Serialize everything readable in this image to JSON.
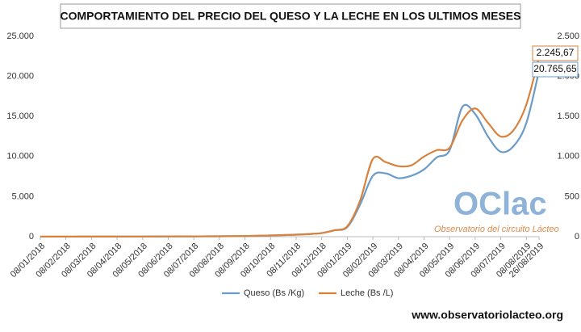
{
  "chart_data": {
    "type": "line",
    "title": "COMPORTAMIENTO DEL PRECIO DEL QUESO Y LA LECHE EN LOS ULTIMOS MESES",
    "categories": [
      "08/01/2018",
      null,
      "08/02/2018",
      null,
      "08/03/2018",
      null,
      "08/04/2018",
      null,
      "08/05/2018",
      null,
      "08/06/2018",
      null,
      "08/07/2018",
      null,
      "08/08/2018",
      null,
      "08/09/2018",
      null,
      "08/10/2018",
      null,
      "08/11/2018",
      null,
      "08/12/2018",
      null,
      "08/01/2019",
      null,
      "08/02/2019",
      null,
      "08/03/2019",
      null,
      "08/04/2019",
      null,
      "08/05/2019",
      null,
      "08/06/2019",
      null,
      "08/07/2019",
      null,
      "08/08/2019",
      "26/08/2019"
    ],
    "series": [
      {
        "name": "Queso (Bs /Kg)",
        "color": "#6b9bc8",
        "axis": "y",
        "values": [
          5,
          6,
          8,
          9,
          10,
          12,
          15,
          17,
          20,
          25,
          30,
          35,
          40,
          45,
          50,
          65,
          80,
          110,
          150,
          200,
          250,
          330,
          450,
          800,
          1200,
          4000,
          7600,
          7900,
          7300,
          7600,
          8400,
          9900,
          10800,
          16200,
          15300,
          12500,
          10600,
          11300,
          14200,
          20765.65
        ],
        "value_labels": [
          null,
          null,
          null,
          null,
          null,
          null,
          null,
          null,
          null,
          null,
          null,
          null,
          null,
          null,
          null,
          null,
          null,
          null,
          null,
          null,
          null,
          null,
          null,
          null,
          null,
          null,
          null,
          null,
          null,
          null,
          null,
          null,
          null,
          null,
          null,
          null,
          null,
          null,
          null,
          "20.765,65"
        ]
      },
      {
        "name": "Leche (Bs /L)",
        "color": "#d9823d",
        "axis": "y2",
        "values": [
          1,
          1,
          1,
          1,
          1,
          1,
          2,
          2,
          2,
          3,
          3,
          4,
          4,
          5,
          5,
          7,
          8,
          11,
          15,
          20,
          25,
          33,
          45,
          80,
          130,
          450,
          970,
          930,
          880,
          890,
          1000,
          1080,
          1110,
          1450,
          1600,
          1420,
          1250,
          1330,
          1650,
          2245.67
        ],
        "value_labels": [
          null,
          null,
          null,
          null,
          null,
          null,
          null,
          null,
          null,
          null,
          null,
          null,
          null,
          null,
          null,
          null,
          null,
          null,
          null,
          null,
          null,
          null,
          null,
          null,
          null,
          null,
          null,
          null,
          null,
          null,
          null,
          null,
          null,
          null,
          null,
          null,
          null,
          null,
          null,
          "2.245,67"
        ]
      }
    ],
    "ylim": [
      0,
      25000
    ],
    "yticks": [
      0,
      {
        "value": 5000,
        "label": "5.000"
      },
      {
        "value": 10000,
        "label": "10.000"
      },
      {
        "value": 15000,
        "label": "15.000"
      },
      {
        "value": 20000,
        "label": "20.000"
      },
      {
        "value": 25000,
        "label": "25.000"
      }
    ],
    "y2lim": [
      0,
      2500
    ],
    "y2ticks": [
      0,
      500,
      {
        "value": 1000,
        "label": "1.000"
      },
      {
        "value": 1500,
        "label": "1.500"
      },
      {
        "value": 2000,
        "label": "2.000"
      },
      {
        "value": 2500,
        "label": "2.500"
      }
    ],
    "grid": false,
    "legend": "bottom",
    "logo": {
      "name": "OClac",
      "tagline": "Observatorio del circuito Lácteo"
    },
    "source": "www.observatoriolacteo.org"
  }
}
